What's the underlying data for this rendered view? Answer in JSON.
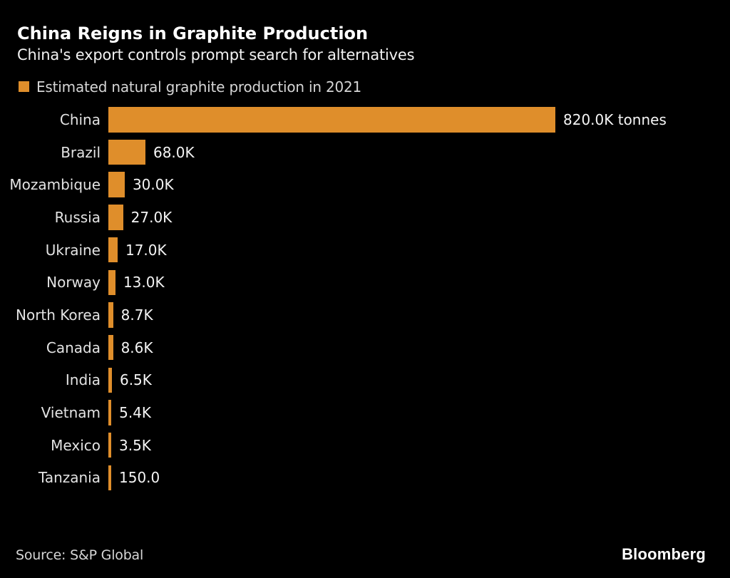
{
  "header": {
    "title": "China Reigns in Graphite Production",
    "subtitle": "China's export controls prompt search for alternatives"
  },
  "legend": {
    "label": "Estimated natural graphite production in 2021",
    "swatch_color": "#DF8E2B",
    "swatch_icon": "orange-square"
  },
  "chart_data": {
    "type": "bar",
    "orientation": "horizontal",
    "title": "China Reigns in Graphite Production",
    "subtitle": "China's export controls prompt search for alternatives",
    "series_name": "Estimated natural graphite production in 2021",
    "unit": "tonnes",
    "categories": [
      "China",
      "Brazil",
      "Mozambique",
      "Russia",
      "Ukraine",
      "Norway",
      "North Korea",
      "Canada",
      "India",
      "Vietnam",
      "Mexico",
      "Tanzania"
    ],
    "values_k_tonnes": [
      820.0,
      68.0,
      30.0,
      27.0,
      17.0,
      13.0,
      8.7,
      8.6,
      6.5,
      5.4,
      3.5,
      0.15
    ],
    "value_labels": [
      "820.0K tonnes",
      "68.0K",
      "30.0K",
      "27.0K",
      "17.0K",
      "13.0K",
      "8.7K",
      "8.6K",
      "6.5K",
      "5.4K",
      "3.5K",
      "150.0"
    ],
    "xlim_k": [
      0,
      820
    ],
    "grid": false,
    "axis_ticks": "none",
    "legend_position": "top-left",
    "bar_color": "#DF8E2B"
  },
  "footer": {
    "source": "Source: S&P Global",
    "brand": "Bloomberg"
  },
  "colors": {
    "background": "#000000",
    "accent_orange": "#DF8E2B",
    "title_text": "#FFFFFF",
    "subtitle_text": "#F2F2F2",
    "category_text": "#E3E3E3",
    "value_text": "#F5F5F5",
    "muted_text": "#D6D6D6"
  }
}
